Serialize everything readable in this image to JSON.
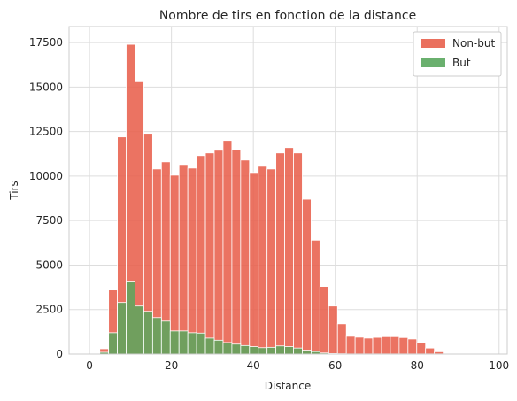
{
  "chart_data": {
    "type": "bar",
    "title": "Nombre de tirs en fonction de la distance",
    "xlabel": "Distance",
    "ylabel": "Tirs",
    "xlim": [
      -5,
      102
    ],
    "ylim": [
      0,
      18400
    ],
    "xticks": [
      "0",
      "20",
      "40",
      "60",
      "80",
      "100"
    ],
    "yticks": [
      "0",
      "2500",
      "5000",
      "7500",
      "10000",
      "12500",
      "15000",
      "17500"
    ],
    "grid": true,
    "legend_position": "top-right",
    "bin_start": 2.5,
    "bin_width": 2.15,
    "series": [
      {
        "name": "Non-but",
        "color": "#e8604c",
        "values": [
          300,
          3600,
          12200,
          17400,
          15300,
          12400,
          10400,
          10800,
          10050,
          10650,
          10450,
          11150,
          11300,
          11450,
          12000,
          11500,
          10900,
          10200,
          10550,
          10400,
          11300,
          11600,
          11300,
          8700,
          6400,
          3800,
          2700,
          1700,
          1000,
          950,
          900,
          940,
          980,
          980,
          930,
          850,
          640,
          340,
          130
        ]
      },
      {
        "name": "But",
        "color": "#5aa75e",
        "values": [
          100,
          1200,
          2900,
          4050,
          2700,
          2400,
          2050,
          1850,
          1300,
          1300,
          1200,
          1180,
          900,
          780,
          650,
          560,
          480,
          420,
          360,
          380,
          460,
          420,
          340,
          220,
          140,
          60,
          30,
          20,
          10,
          10,
          10,
          10,
          10,
          10,
          10,
          10,
          10,
          10,
          10
        ]
      }
    ]
  }
}
